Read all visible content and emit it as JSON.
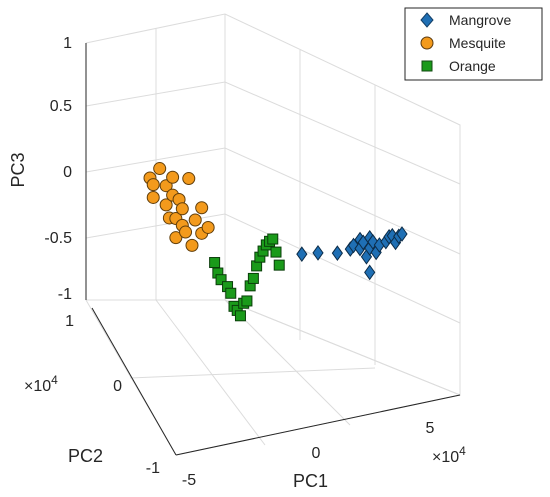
{
  "chart_data": {
    "type": "scatter3d",
    "xlabel": "PC1",
    "ylabel": "PC2",
    "zlabel": "PC3",
    "xlim": [
      -50000,
      60000
    ],
    "ylim": [
      -10000,
      10000
    ],
    "zlim": [
      -1,
      1
    ],
    "x_ticks": [
      "-5",
      "0",
      "5"
    ],
    "y_ticks": [
      "-1",
      "0",
      "1"
    ],
    "z_ticks": [
      "-1",
      "-0.5",
      "0",
      "0.5",
      "1"
    ],
    "x_exponent": "×10",
    "x_exponent_power": "4",
    "y_exponent": "×10",
    "y_exponent_power": "4",
    "grid": true,
    "legend_position": "top-right",
    "series": [
      {
        "name": "Mangrove",
        "marker": "diamond",
        "color": "#1f6fb4",
        "points": [
          [
            17000,
            0,
            -0.5
          ],
          [
            22000,
            0,
            -0.48
          ],
          [
            28000,
            0,
            -0.47
          ],
          [
            32000,
            0,
            -0.43
          ],
          [
            33000,
            0,
            -0.4
          ],
          [
            35000,
            0,
            -0.35
          ],
          [
            35000,
            0,
            -0.42
          ],
          [
            36000,
            0,
            -0.37
          ],
          [
            37000,
            0,
            -0.48
          ],
          [
            38000,
            0,
            -0.41
          ],
          [
            38000,
            0,
            -0.33
          ],
          [
            39000,
            0,
            -0.36
          ],
          [
            38000,
            0,
            -0.6
          ],
          [
            40000,
            0,
            -0.44
          ],
          [
            41000,
            0,
            -0.38
          ],
          [
            43000,
            0,
            -0.35
          ],
          [
            44000,
            0,
            -0.31
          ],
          [
            45000,
            0,
            -0.3
          ],
          [
            46000,
            0,
            -0.35
          ],
          [
            47000,
            0,
            -0.3
          ],
          [
            48000,
            0,
            -0.28
          ]
        ]
      },
      {
        "name": "Mesquite",
        "marker": "circle",
        "color": "#f39a1c",
        "points": [
          [
            -30000,
            0,
            0.0
          ],
          [
            -29000,
            0,
            -0.15
          ],
          [
            -29000,
            0,
            -0.05
          ],
          [
            -27000,
            0,
            0.08
          ],
          [
            -25000,
            0,
            -0.05
          ],
          [
            -25000,
            0,
            -0.2
          ],
          [
            -24000,
            0,
            -0.3
          ],
          [
            -23000,
            0,
            -0.12
          ],
          [
            -23000,
            0,
            0.02
          ],
          [
            -22000,
            0,
            -0.45
          ],
          [
            -22000,
            0,
            -0.3
          ],
          [
            -21000,
            0,
            -0.15
          ],
          [
            -20000,
            0,
            -0.22
          ],
          [
            -20000,
            0,
            -0.35
          ],
          [
            -19000,
            0,
            -0.4
          ],
          [
            -18000,
            0,
            0.02
          ],
          [
            -17000,
            0,
            -0.5
          ],
          [
            -16000,
            0,
            -0.3
          ],
          [
            -14000,
            0,
            -0.4
          ],
          [
            -14000,
            0,
            -0.2
          ],
          [
            -12000,
            0,
            -0.35
          ]
        ]
      },
      {
        "name": "Orange",
        "marker": "square",
        "color": "#1a9a1a",
        "points": [
          [
            -10000,
            0,
            -0.62
          ],
          [
            -9000,
            0,
            -0.7
          ],
          [
            -8000,
            0,
            -0.75
          ],
          [
            -6000,
            0,
            -0.8
          ],
          [
            -5000,
            0,
            -0.85
          ],
          [
            -4000,
            0,
            -0.95
          ],
          [
            -3000,
            0,
            -0.98
          ],
          [
            -2000,
            0,
            -1.02
          ],
          [
            -1000,
            0,
            -0.92
          ],
          [
            0,
            0,
            -0.9
          ],
          [
            1000,
            0,
            -0.78
          ],
          [
            2000,
            0,
            -0.72
          ],
          [
            3000,
            0,
            -0.62
          ],
          [
            4000,
            0,
            -0.55
          ],
          [
            5000,
            0,
            -0.5
          ],
          [
            6000,
            0,
            -0.45
          ],
          [
            7000,
            0,
            -0.42
          ],
          [
            8000,
            0,
            -0.4
          ],
          [
            9000,
            0,
            -0.5
          ],
          [
            10000,
            0,
            -0.6
          ]
        ]
      }
    ]
  }
}
